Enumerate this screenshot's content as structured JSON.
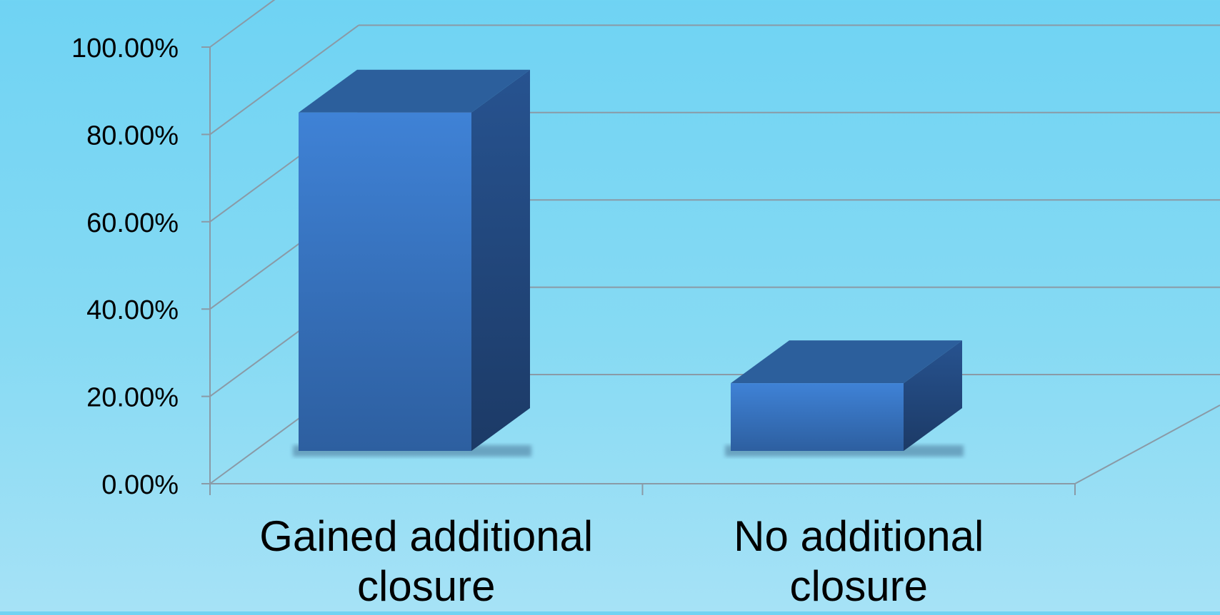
{
  "chart_data": {
    "type": "bar",
    "style": "3d-column",
    "title": "",
    "xlabel": "",
    "ylabel": "",
    "categories": [
      "Gained additional closure",
      "No additional closure"
    ],
    "category_lines": [
      [
        "Gained additional",
        "closure"
      ],
      [
        "No additional",
        "closure"
      ]
    ],
    "values": [
      83.33,
      16.67
    ],
    "ylim": [
      0,
      100
    ],
    "yticks": [
      0,
      20,
      40,
      60,
      80,
      100
    ],
    "ytick_labels": [
      "0.00%",
      "20.00%",
      "40.00%",
      "60.00%",
      "80.00%",
      "100.00%"
    ],
    "grid": true,
    "legend": "none",
    "colors": {
      "bar_front_top": "#3f82d6",
      "bar_front_bottom": "#2d5fa0",
      "bar_top": "#2c5f9c",
      "bar_side_top": "#275390",
      "bar_side_bottom": "#1c3a66",
      "gridline": "#8a9aa6",
      "text": "#000000"
    }
  }
}
